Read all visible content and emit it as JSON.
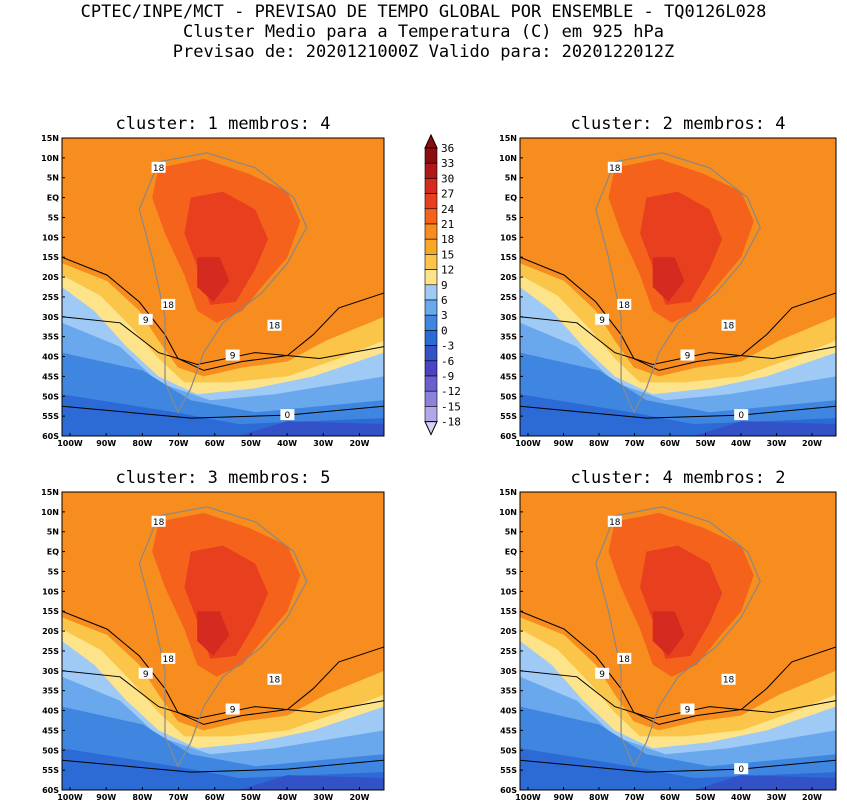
{
  "header": {
    "line1": "CPTEC/INPE/MCT - PREVISAO DE TEMPO GLOBAL POR ENSEMBLE - TQ0126L028",
    "line2": "Cluster Medio para a Temperatura (C) em 925 hPa",
    "line3": "Previsao de: 2020121000Z   Valido para: 2020122012Z"
  },
  "panels": [
    {
      "title": "cluster: 1  membros: 4"
    },
    {
      "title": "cluster: 2  membros: 4"
    },
    {
      "title": "cluster: 3  membros: 5"
    },
    {
      "title": "cluster: 4  membros: 2"
    }
  ],
  "lat_labels": [
    "15N",
    "10N",
    "5N",
    "EQ",
    "5S",
    "10S",
    "15S",
    "20S",
    "25S",
    "30S",
    "35S",
    "40S",
    "45S",
    "50S",
    "55S",
    "60S"
  ],
  "lon_labels": [
    "100W",
    "90W",
    "80W",
    "70W",
    "60W",
    "50W",
    "40W",
    "30W",
    "20W"
  ],
  "colorbar": {
    "labels": [
      "36",
      "33",
      "30",
      "27",
      "24",
      "21",
      "18",
      "15",
      "12",
      "9",
      "6",
      "3",
      "0",
      "-3",
      "-6",
      "-9",
      "-12",
      "-15",
      "-18"
    ],
    "colors": [
      "#8b0d0d",
      "#b01818",
      "#d42a20",
      "#e8401f",
      "#f4621c",
      "#f78d1e",
      "#f9a825",
      "#fbc54a",
      "#fde38a",
      "#9fcaf5",
      "#6aa8ee",
      "#3f86e0",
      "#2c6ad6",
      "#3352c8",
      "#4a43c2",
      "#6b5fcf",
      "#8c82dc",
      "#b0a8e8",
      "#d6d0f5"
    ]
  },
  "contour_labels": {
    "c1": [
      "18",
      "18",
      "9",
      "18",
      "9",
      "0"
    ],
    "c2": [
      "18",
      "18",
      "9",
      "18",
      "9",
      "0"
    ],
    "c3": [
      "18",
      "18",
      "9",
      "18",
      "9"
    ],
    "c4": [
      "18",
      "18",
      "9",
      "18",
      "9",
      "0"
    ]
  }
}
